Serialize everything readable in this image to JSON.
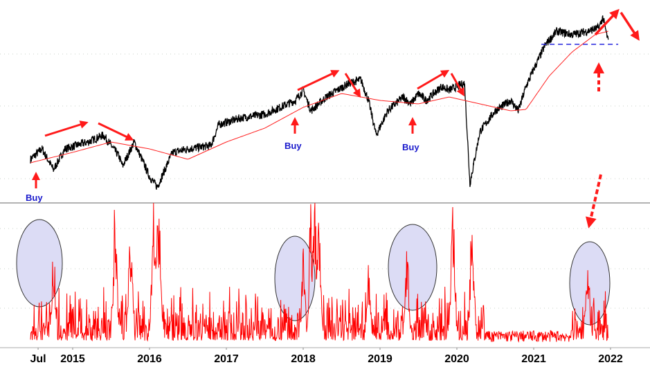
{
  "chart_data": [
    {
      "type": "line",
      "panel": "top",
      "title": "",
      "xlabel": "",
      "ylabel": "",
      "grid": true,
      "x_tick_labels": [
        "Jul",
        "2015",
        "2016",
        "2017",
        "2018",
        "2019",
        "2020",
        "2021",
        "2022"
      ],
      "xlim": [
        2014.45,
        2022.2
      ],
      "ylim": [
        0,
        290
      ],
      "series": [
        {
          "role": "price",
          "color": "#000000",
          "x": [
            2014.45,
            2014.6,
            2014.75,
            2014.9,
            2015.2,
            2015.4,
            2015.6,
            2015.65,
            2015.8,
            2016.0,
            2016.1,
            2016.3,
            2016.5,
            2016.8,
            2016.9,
            2017.2,
            2017.5,
            2017.9,
            2018.0,
            2018.1,
            2018.3,
            2018.6,
            2018.75,
            2018.85,
            2018.95,
            2019.1,
            2019.3,
            2019.4,
            2019.5,
            2019.6,
            2019.8,
            2019.9,
            2020.0,
            2020.1,
            2020.17,
            2020.3,
            2020.5,
            2020.7,
            2020.8,
            2020.9,
            2021.0,
            2021.15,
            2021.3,
            2021.5,
            2021.7,
            2021.85,
            2021.9,
            2021.97
          ],
          "y": [
            60,
            75,
            45,
            75,
            85,
            95,
            65,
            50,
            85,
            35,
            20,
            70,
            75,
            80,
            110,
            120,
            125,
            145,
            160,
            130,
            150,
            170,
            175,
            145,
            95,
            130,
            150,
            140,
            155,
            145,
            165,
            160,
            165,
            170,
            25,
            100,
            130,
            145,
            130,
            165,
            190,
            225,
            245,
            240,
            245,
            250,
            265,
            230
          ]
        },
        {
          "role": "moving-average",
          "color": "#ff2020",
          "x": [
            2014.45,
            2015.0,
            2015.5,
            2016.0,
            2016.5,
            2017.0,
            2017.5,
            2018.0,
            2018.5,
            2019.0,
            2019.5,
            2019.9,
            2020.3,
            2020.7,
            2020.9,
            2021.2,
            2021.5,
            2021.8,
            2021.97
          ],
          "y": [
            55,
            70,
            85,
            75,
            60,
            85,
            105,
            135,
            155,
            145,
            140,
            150,
            140,
            130,
            132,
            180,
            215,
            240,
            245
          ]
        },
        {
          "role": "support-level",
          "color": "#2020dd",
          "x": [
            2021.1,
            2022.1
          ],
          "y": [
            226,
            226
          ]
        }
      ],
      "annotations": [
        {
          "text": "Buy",
          "x": 2014.75
        },
        {
          "text": "Buy",
          "x": 2017.95
        },
        {
          "text": "Buy",
          "x": 2019.5
        }
      ]
    },
    {
      "type": "line",
      "panel": "bottom",
      "xlabel": "",
      "ylabel": "",
      "grid": true,
      "ylim": [
        0,
        100
      ],
      "series": [
        {
          "role": "volatility-spikes",
          "color": "#ff0000",
          "x": [
            2014.75,
            2015.55,
            2015.75,
            2016.05,
            2016.1,
            2016.12,
            2018.0,
            2018.1,
            2018.15,
            2018.2,
            2018.85,
            2019.35,
            2019.95,
            2020.2,
            2021.7
          ],
          "y": [
            75,
            100,
            85,
            100,
            100,
            100,
            65,
            100,
            100,
            100,
            55,
            75,
            100,
            100,
            65
          ]
        }
      ],
      "highlighted_regions": [
        2014.75,
        2018.0,
        2019.5,
        2021.7
      ]
    }
  ],
  "colors": {
    "price": "#000000",
    "ma": "#ff2020",
    "arrows": "#ff1a1a",
    "ellipse_fill": "#dcdcf5",
    "support": "#2020dd",
    "buy_text": "#1a1acc"
  }
}
